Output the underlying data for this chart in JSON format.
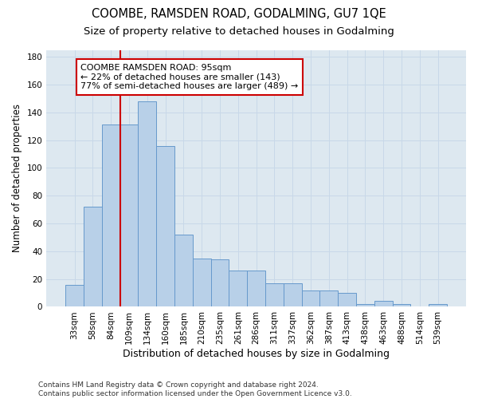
{
  "title": "COOMBE, RAMSDEN ROAD, GODALMING, GU7 1QE",
  "subtitle": "Size of property relative to detached houses in Godalming",
  "xlabel": "Distribution of detached houses by size in Godalming",
  "ylabel": "Number of detached properties",
  "categories": [
    "33sqm",
    "58sqm",
    "84sqm",
    "109sqm",
    "134sqm",
    "160sqm",
    "185sqm",
    "210sqm",
    "235sqm",
    "261sqm",
    "286sqm",
    "311sqm",
    "337sqm",
    "362sqm",
    "387sqm",
    "413sqm",
    "438sqm",
    "463sqm",
    "488sqm",
    "514sqm",
    "539sqm"
  ],
  "values": [
    16,
    72,
    131,
    131,
    148,
    116,
    52,
    35,
    34,
    26,
    26,
    17,
    17,
    12,
    12,
    10,
    2,
    4,
    2,
    0,
    2
  ],
  "bar_color": "#b8d0e8",
  "bar_edgecolor": "#6699cc",
  "vline_x_index": 2,
  "vline_color": "#cc0000",
  "annotation_box_text": "COOMBE RAMSDEN ROAD: 95sqm\n← 22% of detached houses are smaller (143)\n77% of semi-detached houses are larger (489) →",
  "annotation_box_color": "#cc0000",
  "annotation_box_facecolor": "white",
  "ylim": [
    0,
    185
  ],
  "yticks": [
    0,
    20,
    40,
    60,
    80,
    100,
    120,
    140,
    160,
    180
  ],
  "grid_color": "#c8d8e8",
  "bg_color": "#dde8f0",
  "footer": "Contains HM Land Registry data © Crown copyright and database right 2024.\nContains public sector information licensed under the Open Government Licence v3.0.",
  "title_fontsize": 10.5,
  "subtitle_fontsize": 9.5,
  "xlabel_fontsize": 9,
  "ylabel_fontsize": 8.5,
  "tick_fontsize": 7.5,
  "annotation_fontsize": 8,
  "footer_fontsize": 6.5
}
